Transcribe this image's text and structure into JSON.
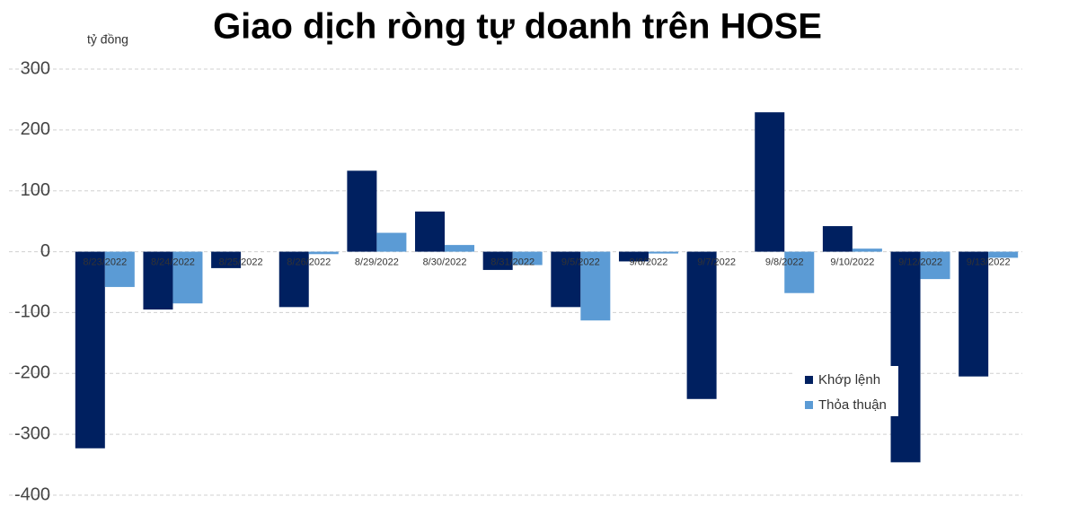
{
  "chart_data": {
    "type": "bar",
    "title": "Giao dịch ròng tự doanh trên HOSE",
    "y_unit": "tỷ đồng",
    "categories": [
      "8/23/2022",
      "8/24/2022",
      "8/25/2022",
      "8/26/2022",
      "8/29/2022",
      "8/30/2022",
      "8/31/2022",
      "9/5/2022",
      "9/6/2022",
      "9/7/2022",
      "9/8/2022",
      "9/10/2022",
      "9/12/2022",
      "9/13/2022"
    ],
    "series": [
      {
        "name": "Khớp lệnh",
        "color": "#002060",
        "values": [
          -323,
          -95,
          -27,
          -91,
          133,
          66,
          -30,
          -91,
          -16,
          -242,
          229,
          42,
          -346,
          -205
        ]
      },
      {
        "name": "Thỏa thuận",
        "color": "#5b9bd5",
        "values": [
          -58,
          -85,
          0,
          -4,
          31,
          11,
          -22,
          -113,
          -3,
          0,
          -68,
          5,
          -45,
          -10
        ]
      }
    ],
    "ylim": [
      -400,
      300
    ],
    "yticks": [
      300,
      200,
      100,
      0,
      -100,
      -200,
      -300,
      -400
    ],
    "grid": true,
    "legend": "bottom-right"
  }
}
